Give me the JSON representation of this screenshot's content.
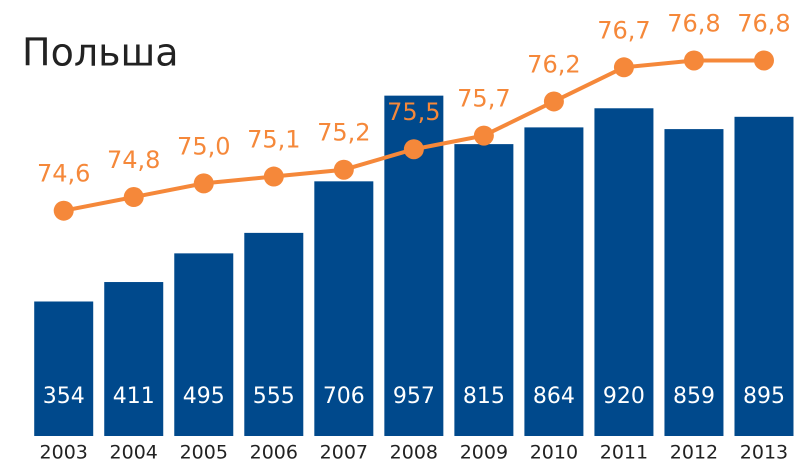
{
  "chart_data": {
    "type": "bar_line",
    "title": "Польша",
    "categories": [
      "2003",
      "2004",
      "2005",
      "2006",
      "2007",
      "2008",
      "2009",
      "2010",
      "2011",
      "2012",
      "2013"
    ],
    "series": [
      {
        "type": "bar",
        "color": "#00498c",
        "values": [
          354,
          411,
          495,
          555,
          706,
          957,
          815,
          864,
          920,
          859,
          895
        ]
      },
      {
        "type": "line",
        "axis": "y2",
        "color": "#f5883a",
        "values": [
          74.6,
          74.8,
          75.0,
          75.1,
          75.2,
          75.5,
          75.7,
          76.2,
          76.7,
          76.8,
          76.8
        ],
        "value_labels": [
          "74,6",
          "74,8",
          "75,0",
          "75,1",
          "75,2",
          "75,5",
          "75,7",
          "76,2",
          "76,7",
          "76,8",
          "76,8"
        ]
      }
    ],
    "ylim": [
      -40,
      1120
    ],
    "y2lim": [
      71.3,
      77.1
    ]
  }
}
